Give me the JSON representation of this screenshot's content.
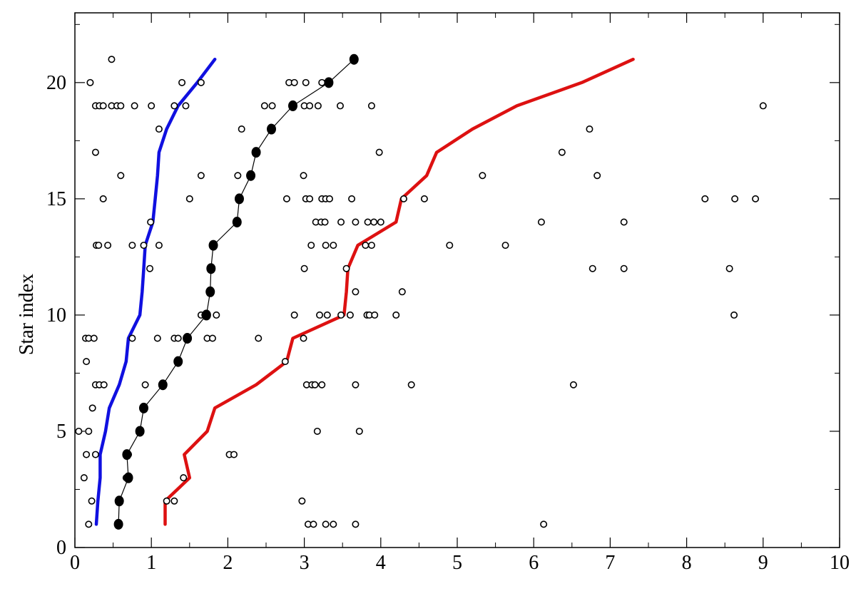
{
  "chart_data": {
    "type": "scatter",
    "ylabel": "Star index",
    "xlim": [
      0,
      10
    ],
    "ylim": [
      0,
      23
    ],
    "x_ticks": [
      "0",
      "1",
      "2",
      "3",
      "4",
      "5",
      "6",
      "7",
      "8",
      "9",
      "10"
    ],
    "y_ticks": [
      "0",
      "5",
      "10",
      "15",
      "20"
    ],
    "grid": false,
    "colors": {
      "blue_curve": "#1010e0",
      "black_curve": "#000000",
      "red_curve": "#dd1111",
      "markers": "#000000"
    },
    "series": [
      {
        "style": "open-circles",
        "points": [
          [
            0.18,
            1
          ],
          [
            3.05,
            1
          ],
          [
            3.12,
            1
          ],
          [
            3.28,
            1
          ],
          [
            3.38,
            1
          ],
          [
            3.67,
            1
          ],
          [
            6.13,
            1
          ],
          [
            0.22,
            2
          ],
          [
            1.2,
            2
          ],
          [
            1.3,
            2
          ],
          [
            2.97,
            2
          ],
          [
            0.12,
            3
          ],
          [
            0.67,
            3
          ],
          [
            1.42,
            3
          ],
          [
            0.15,
            4
          ],
          [
            0.27,
            4
          ],
          [
            0.7,
            4
          ],
          [
            2.02,
            4
          ],
          [
            2.08,
            4
          ],
          [
            0.05,
            5
          ],
          [
            0.18,
            5
          ],
          [
            3.17,
            5
          ],
          [
            3.72,
            5
          ],
          [
            0.23,
            6
          ],
          [
            0.27,
            7
          ],
          [
            0.32,
            7
          ],
          [
            0.38,
            7
          ],
          [
            0.92,
            7
          ],
          [
            3.03,
            7
          ],
          [
            3.1,
            7
          ],
          [
            3.14,
            7
          ],
          [
            3.23,
            7
          ],
          [
            3.67,
            7
          ],
          [
            4.4,
            7
          ],
          [
            6.52,
            7
          ],
          [
            0.15,
            8
          ],
          [
            2.75,
            8
          ],
          [
            0.14,
            9
          ],
          [
            0.18,
            9
          ],
          [
            0.25,
            9
          ],
          [
            0.75,
            9
          ],
          [
            1.08,
            9
          ],
          [
            1.3,
            9
          ],
          [
            1.35,
            9
          ],
          [
            1.73,
            9
          ],
          [
            1.8,
            9
          ],
          [
            2.4,
            9
          ],
          [
            2.99,
            9
          ],
          [
            1.65,
            10
          ],
          [
            1.7,
            10
          ],
          [
            1.85,
            10
          ],
          [
            2.87,
            10
          ],
          [
            3.2,
            10
          ],
          [
            3.3,
            10
          ],
          [
            3.48,
            10
          ],
          [
            3.6,
            10
          ],
          [
            3.82,
            10
          ],
          [
            3.85,
            10
          ],
          [
            3.92,
            10
          ],
          [
            4.2,
            10
          ],
          [
            8.62,
            10
          ],
          [
            3.67,
            11
          ],
          [
            4.28,
            11
          ],
          [
            0.98,
            12
          ],
          [
            3.0,
            12
          ],
          [
            3.55,
            12
          ],
          [
            6.77,
            12
          ],
          [
            7.18,
            12
          ],
          [
            8.56,
            12
          ],
          [
            0.28,
            13
          ],
          [
            0.31,
            13
          ],
          [
            0.43,
            13
          ],
          [
            0.75,
            13
          ],
          [
            0.9,
            13
          ],
          [
            1.1,
            13
          ],
          [
            3.09,
            13
          ],
          [
            3.28,
            13
          ],
          [
            3.38,
            13
          ],
          [
            3.8,
            13
          ],
          [
            3.88,
            13
          ],
          [
            4.9,
            13
          ],
          [
            5.63,
            13
          ],
          [
            0.99,
            14
          ],
          [
            3.15,
            14
          ],
          [
            3.22,
            14
          ],
          [
            3.27,
            14
          ],
          [
            3.48,
            14
          ],
          [
            3.67,
            14
          ],
          [
            3.83,
            14
          ],
          [
            3.91,
            14
          ],
          [
            4.0,
            14
          ],
          [
            6.1,
            14
          ],
          [
            7.18,
            14
          ],
          [
            0.37,
            15
          ],
          [
            1.5,
            15
          ],
          [
            2.77,
            15
          ],
          [
            3.02,
            15
          ],
          [
            3.07,
            15
          ],
          [
            3.23,
            15
          ],
          [
            3.28,
            15
          ],
          [
            3.33,
            15
          ],
          [
            3.62,
            15
          ],
          [
            4.3,
            15
          ],
          [
            4.57,
            15
          ],
          [
            8.24,
            15
          ],
          [
            8.63,
            15
          ],
          [
            8.9,
            15
          ],
          [
            0.6,
            16
          ],
          [
            1.65,
            16
          ],
          [
            2.13,
            16
          ],
          [
            2.99,
            16
          ],
          [
            5.33,
            16
          ],
          [
            6.83,
            16
          ],
          [
            0.27,
            17
          ],
          [
            3.98,
            17
          ],
          [
            6.37,
            17
          ],
          [
            1.1,
            18
          ],
          [
            2.18,
            18
          ],
          [
            6.73,
            18
          ],
          [
            0.27,
            19
          ],
          [
            0.32,
            19
          ],
          [
            0.37,
            19
          ],
          [
            0.48,
            19
          ],
          [
            0.55,
            19
          ],
          [
            0.6,
            19
          ],
          [
            0.78,
            19
          ],
          [
            1.0,
            19
          ],
          [
            1.3,
            19
          ],
          [
            1.45,
            19
          ],
          [
            2.48,
            19
          ],
          [
            2.58,
            19
          ],
          [
            3.0,
            19
          ],
          [
            3.07,
            19
          ],
          [
            3.18,
            19
          ],
          [
            3.47,
            19
          ],
          [
            3.88,
            19
          ],
          [
            9.0,
            19
          ],
          [
            0.2,
            20
          ],
          [
            1.4,
            20
          ],
          [
            1.65,
            20
          ],
          [
            2.8,
            20
          ],
          [
            2.87,
            20
          ],
          [
            3.02,
            20
          ],
          [
            3.23,
            20
          ],
          [
            0.48,
            21
          ]
        ]
      },
      {
        "style": "filled-circles-line",
        "color": "black",
        "points": [
          [
            0.57,
            1
          ],
          [
            0.58,
            2
          ],
          [
            0.7,
            3
          ],
          [
            0.68,
            4
          ],
          [
            0.85,
            5
          ],
          [
            0.9,
            6
          ],
          [
            1.15,
            7
          ],
          [
            1.35,
            8
          ],
          [
            1.47,
            9
          ],
          [
            1.72,
            10
          ],
          [
            1.77,
            11
          ],
          [
            1.78,
            12
          ],
          [
            1.81,
            13
          ],
          [
            2.12,
            14
          ],
          [
            2.15,
            15
          ],
          [
            2.3,
            16
          ],
          [
            2.37,
            17
          ],
          [
            2.57,
            18
          ],
          [
            2.85,
            19
          ],
          [
            3.32,
            20
          ],
          [
            3.65,
            21
          ]
        ]
      },
      {
        "style": "line",
        "color": "blue",
        "points": [
          [
            0.28,
            1
          ],
          [
            0.3,
            2
          ],
          [
            0.33,
            3
          ],
          [
            0.33,
            4
          ],
          [
            0.4,
            5
          ],
          [
            0.45,
            6
          ],
          [
            0.58,
            7
          ],
          [
            0.67,
            8
          ],
          [
            0.7,
            9
          ],
          [
            0.85,
            10
          ],
          [
            0.88,
            11
          ],
          [
            0.9,
            12
          ],
          [
            0.92,
            13
          ],
          [
            1.02,
            14
          ],
          [
            1.05,
            15
          ],
          [
            1.08,
            16
          ],
          [
            1.1,
            17
          ],
          [
            1.2,
            18
          ],
          [
            1.35,
            19
          ],
          [
            1.6,
            20
          ],
          [
            1.83,
            21
          ]
        ]
      },
      {
        "style": "line",
        "color": "red",
        "points": [
          [
            1.18,
            1
          ],
          [
            1.18,
            2
          ],
          [
            1.5,
            3
          ],
          [
            1.43,
            4
          ],
          [
            1.73,
            5
          ],
          [
            1.83,
            6
          ],
          [
            2.37,
            7
          ],
          [
            2.77,
            8
          ],
          [
            2.85,
            9
          ],
          [
            3.52,
            10
          ],
          [
            3.55,
            11
          ],
          [
            3.57,
            12
          ],
          [
            3.7,
            13
          ],
          [
            4.2,
            14
          ],
          [
            4.27,
            15
          ],
          [
            4.6,
            16
          ],
          [
            4.73,
            17
          ],
          [
            5.2,
            18
          ],
          [
            5.78,
            19
          ],
          [
            6.63,
            20
          ],
          [
            7.3,
            21
          ]
        ]
      }
    ]
  }
}
